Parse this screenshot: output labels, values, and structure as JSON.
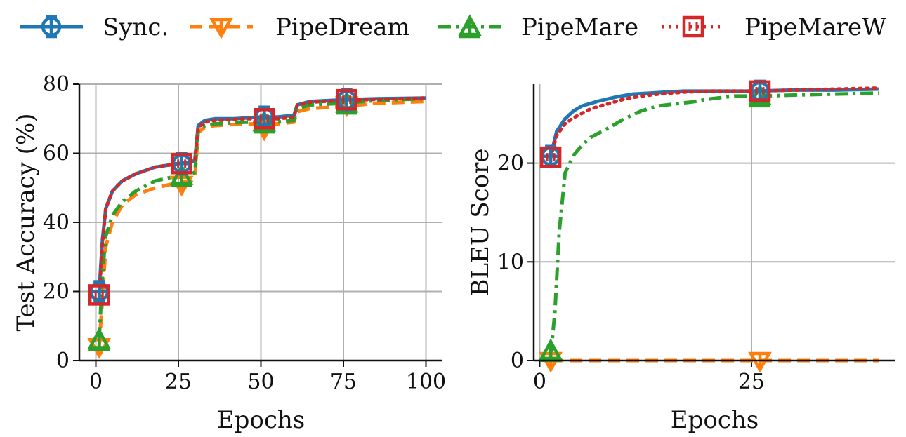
{
  "chart_data": [
    {
      "type": "line",
      "xlabel": "Epochs",
      "ylabel": "Test Accuracy (%)",
      "xlim": [
        -5,
        105
      ],
      "ylim": [
        0,
        80
      ],
      "xticks": [
        "0",
        "25",
        "50",
        "75",
        "100"
      ],
      "yticks": [
        "0",
        "20",
        "40",
        "60",
        "80"
      ],
      "grid": true,
      "series": [
        {
          "name": "Sync.",
          "points": [
            [
              1,
              20
            ],
            [
              2,
              35
            ],
            [
              3,
              44
            ],
            [
              5,
              49
            ],
            [
              8,
              52
            ],
            [
              12,
              54
            ],
            [
              18,
              56
            ],
            [
              25,
              57
            ],
            [
              29,
              57.5
            ],
            [
              30,
              58
            ],
            [
              31,
              68
            ],
            [
              33,
              69.5
            ],
            [
              36,
              70
            ],
            [
              42,
              70
            ],
            [
              50,
              70.5
            ],
            [
              55,
              70.5
            ],
            [
              60,
              71
            ],
            [
              61,
              74
            ],
            [
              65,
              75
            ],
            [
              75,
              75.5
            ],
            [
              85,
              75.8
            ],
            [
              100,
              76
            ]
          ]
        },
        {
          "name": "PipeDream",
          "points": [
            [
              1,
              4
            ],
            [
              2,
              18
            ],
            [
              3,
              33
            ],
            [
              5,
              40
            ],
            [
              8,
              45
            ],
            [
              12,
              48
            ],
            [
              18,
              50
            ],
            [
              25,
              51.5
            ],
            [
              29,
              52
            ],
            [
              30,
              53
            ],
            [
              31,
              66
            ],
            [
              33,
              67.5
            ],
            [
              36,
              68
            ],
            [
              45,
              68.5
            ],
            [
              55,
              68.5
            ],
            [
              60,
              69
            ],
            [
              61,
              72
            ],
            [
              65,
              73
            ],
            [
              75,
              73.5
            ],
            [
              85,
              74.5
            ],
            [
              100,
              75
            ]
          ]
        },
        {
          "name": "PipeMare",
          "points": [
            [
              1,
              6
            ],
            [
              2,
              25
            ],
            [
              3,
              36
            ],
            [
              5,
              42
            ],
            [
              8,
              46
            ],
            [
              12,
              49
            ],
            [
              18,
              52
            ],
            [
              25,
              53.5
            ],
            [
              29,
              54
            ],
            [
              30,
              54.5
            ],
            [
              31,
              66.5
            ],
            [
              33,
              68
            ],
            [
              36,
              68.5
            ],
            [
              45,
              69
            ],
            [
              55,
              69
            ],
            [
              60,
              69.5
            ],
            [
              61,
              73
            ],
            [
              65,
              74
            ],
            [
              75,
              74.5
            ],
            [
              85,
              75.3
            ],
            [
              100,
              75.8
            ]
          ]
        },
        {
          "name": "PipeMareW",
          "points": [
            [
              1,
              19
            ],
            [
              2,
              34
            ],
            [
              3,
              44
            ],
            [
              5,
              49
            ],
            [
              8,
              52
            ],
            [
              12,
              54
            ],
            [
              18,
              56
            ],
            [
              25,
              57
            ],
            [
              29,
              57.5
            ],
            [
              30,
              58
            ],
            [
              31,
              67.5
            ],
            [
              33,
              69
            ],
            [
              36,
              69.5
            ],
            [
              45,
              70
            ],
            [
              55,
              70
            ],
            [
              60,
              70.5
            ],
            [
              61,
              74
            ],
            [
              65,
              74.8
            ],
            [
              75,
              75.3
            ],
            [
              85,
              75.6
            ],
            [
              100,
              76
            ]
          ]
        }
      ],
      "markers": {
        "Sync.": [
          [
            1,
            20
          ],
          [
            26,
            57
          ],
          [
            51,
            70.5
          ],
          [
            76,
            75.5
          ]
        ],
        "PipeDream": [
          [
            1,
            4
          ],
          [
            26,
            51
          ],
          [
            51,
            67
          ],
          [
            76,
            74
          ]
        ],
        "PipeMare": [
          [
            1,
            6
          ],
          [
            26,
            53.5
          ],
          [
            51,
            69
          ],
          [
            76,
            74.5
          ]
        ],
        "PipeMareW": [
          [
            1,
            19
          ],
          [
            26,
            57
          ],
          [
            51,
            70
          ],
          [
            76,
            75.5
          ]
        ]
      }
    },
    {
      "type": "line",
      "xlabel": "Epochs",
      "ylabel": "BLEU Score",
      "xlim": [
        -0.7,
        42
      ],
      "ylim": [
        0,
        28
      ],
      "xticks": [
        "0",
        "25"
      ],
      "yticks": [
        "0",
        "10",
        "20"
      ],
      "grid": true,
      "series": [
        {
          "name": "Sync.",
          "points": [
            [
              1.3,
              20.7
            ],
            [
              2,
              23.2
            ],
            [
              3,
              24.5
            ],
            [
              4,
              25.3
            ],
            [
              5,
              25.8
            ],
            [
              7,
              26.3
            ],
            [
              9,
              26.7
            ],
            [
              11,
              27
            ],
            [
              13,
              27.1
            ],
            [
              15,
              27.2
            ],
            [
              17,
              27.3
            ],
            [
              20,
              27.3
            ],
            [
              25,
              27.3
            ],
            [
              30,
              27.4
            ],
            [
              35,
              27.4
            ],
            [
              40,
              27.5
            ]
          ]
        },
        {
          "name": "PipeDream",
          "points": [
            [
              1.3,
              0
            ],
            [
              5,
              0
            ],
            [
              10,
              0
            ],
            [
              15,
              0
            ],
            [
              20,
              0
            ],
            [
              25,
              0
            ],
            [
              30,
              0
            ],
            [
              35,
              0
            ],
            [
              40,
              0
            ]
          ]
        },
        {
          "name": "PipeMare",
          "points": [
            [
              1.3,
              0.5
            ],
            [
              1.8,
              5
            ],
            [
              2.3,
              13
            ],
            [
              3,
              19
            ],
            [
              4,
              20.8
            ],
            [
              5,
              21.8
            ],
            [
              6,
              22.6
            ],
            [
              8,
              23.5
            ],
            [
              10,
              24.5
            ],
            [
              12,
              25.3
            ],
            [
              14,
              25.8
            ],
            [
              16,
              26
            ],
            [
              18,
              26.2
            ],
            [
              20,
              26.5
            ],
            [
              23,
              26.8
            ],
            [
              26,
              26.8
            ],
            [
              30,
              26.9
            ],
            [
              35,
              27
            ],
            [
              40,
              27.1
            ]
          ]
        },
        {
          "name": "PipeMareW",
          "points": [
            [
              1.3,
              20.6
            ],
            [
              2,
              22.8
            ],
            [
              3,
              24
            ],
            [
              4,
              24.6
            ],
            [
              6,
              25.5
            ],
            [
              8,
              26
            ],
            [
              10,
              26.5
            ],
            [
              12,
              26.8
            ],
            [
              14,
              27
            ],
            [
              17,
              27.2
            ],
            [
              20,
              27.3
            ],
            [
              25,
              27.3
            ],
            [
              30,
              27.4
            ],
            [
              35,
              27.5
            ],
            [
              40,
              27.6
            ]
          ]
        }
      ],
      "markers": {
        "Sync.": [
          [
            1.3,
            20.7
          ],
          [
            26,
            27.3
          ]
        ],
        "PipeDream": [
          [
            1.3,
            0
          ],
          [
            26,
            0
          ]
        ],
        "PipeMare": [
          [
            1.3,
            1
          ],
          [
            26,
            26.8
          ]
        ],
        "PipeMareW": [
          [
            1.3,
            20.6
          ],
          [
            26,
            27.3
          ]
        ]
      }
    }
  ],
  "legend": [
    {
      "name": "Sync.",
      "label": "Sync.",
      "color": "#1f77b4",
      "dash": "solid",
      "marker": "circle-plus"
    },
    {
      "name": "PipeDream",
      "label": "PipeDream",
      "color": "#ff7f0e",
      "dash": "dashed",
      "marker": "triangle-down"
    },
    {
      "name": "PipeMare",
      "label": "PipeMare",
      "color": "#2ca02c",
      "dash": "dashdot",
      "marker": "triangle-up"
    },
    {
      "name": "PipeMareW",
      "label": "PipeMareW",
      "color": "#d62728",
      "dash": "dotted",
      "marker": "square-split"
    }
  ]
}
